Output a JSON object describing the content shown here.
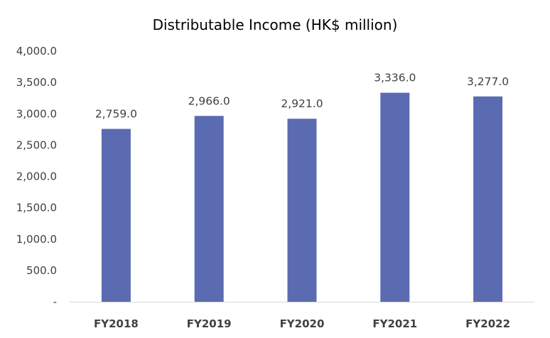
{
  "chart_data": {
    "type": "bar",
    "title": "Distributable Income (HK$ million)",
    "categories": [
      "FY2018",
      "FY2019",
      "FY2020",
      "FY2021",
      "FY2022"
    ],
    "values": [
      2759.0,
      2966.0,
      2921.0,
      3336.0,
      3277.0
    ],
    "data_labels": [
      "2,759.0",
      "2,966.0",
      "2,921.0",
      "3,336.0",
      "3,277.0"
    ],
    "y_ticks": [
      {
        "value": 0,
        "label": "-"
      },
      {
        "value": 500,
        "label": "500.0"
      },
      {
        "value": 1000,
        "label": "1,000.0"
      },
      {
        "value": 1500,
        "label": "1,500.0"
      },
      {
        "value": 2000,
        "label": "2,000.0"
      },
      {
        "value": 2500,
        "label": "2,500.0"
      },
      {
        "value": 3000,
        "label": "3,000.0"
      },
      {
        "value": 3500,
        "label": "3,500.0"
      },
      {
        "value": 4000,
        "label": "4,000.0"
      }
    ],
    "ylim": [
      0,
      4000
    ],
    "xlabel": "",
    "ylabel": "",
    "grid": false,
    "legend": "none",
    "bar_color": "#5b6bb2",
    "axis_color": "#d9d9d9"
  }
}
